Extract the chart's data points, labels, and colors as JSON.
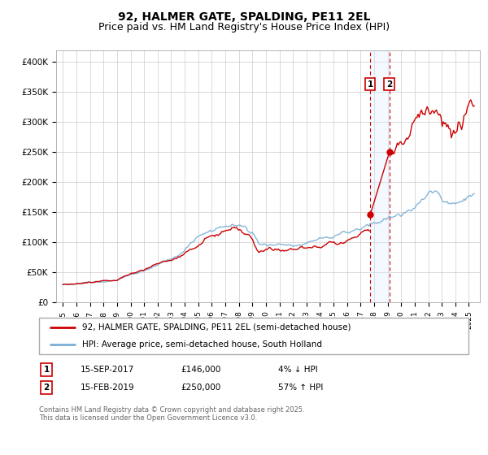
{
  "title": "92, HALMER GATE, SPALDING, PE11 2EL",
  "subtitle": "Price paid vs. HM Land Registry's House Price Index (HPI)",
  "title_fontsize": 10,
  "subtitle_fontsize": 9,
  "background_color": "#ffffff",
  "plot_bg_color": "#ffffff",
  "grid_color": "#cccccc",
  "red_line_color": "#cc0000",
  "blue_line_color": "#7bafd4",
  "sale1_date_num": 2017.71,
  "sale2_date_num": 2019.12,
  "sale1_price": 146000,
  "sale2_price": 250000,
  "shade_color": "#ddeeff",
  "legend_label_red": "92, HALMER GATE, SPALDING, PE11 2EL (semi-detached house)",
  "legend_label_blue": "HPI: Average price, semi-detached house, South Holland",
  "table_row1": [
    "1",
    "15-SEP-2017",
    "£146,000",
    "4% ↓ HPI"
  ],
  "table_row2": [
    "2",
    "15-FEB-2019",
    "£250,000",
    "57% ↑ HPI"
  ],
  "footer": "Contains HM Land Registry data © Crown copyright and database right 2025.\nThis data is licensed under the Open Government Licence v3.0.",
  "ylim": [
    0,
    420000
  ],
  "xlim_left": 1994.5,
  "xlim_right": 2025.8,
  "yticks": [
    0,
    50000,
    100000,
    150000,
    200000,
    250000,
    300000,
    350000,
    400000
  ],
  "ytick_labels": [
    "£0",
    "£50K",
    "£100K",
    "£150K",
    "£200K",
    "£250K",
    "£300K",
    "£350K",
    "£400K"
  ]
}
